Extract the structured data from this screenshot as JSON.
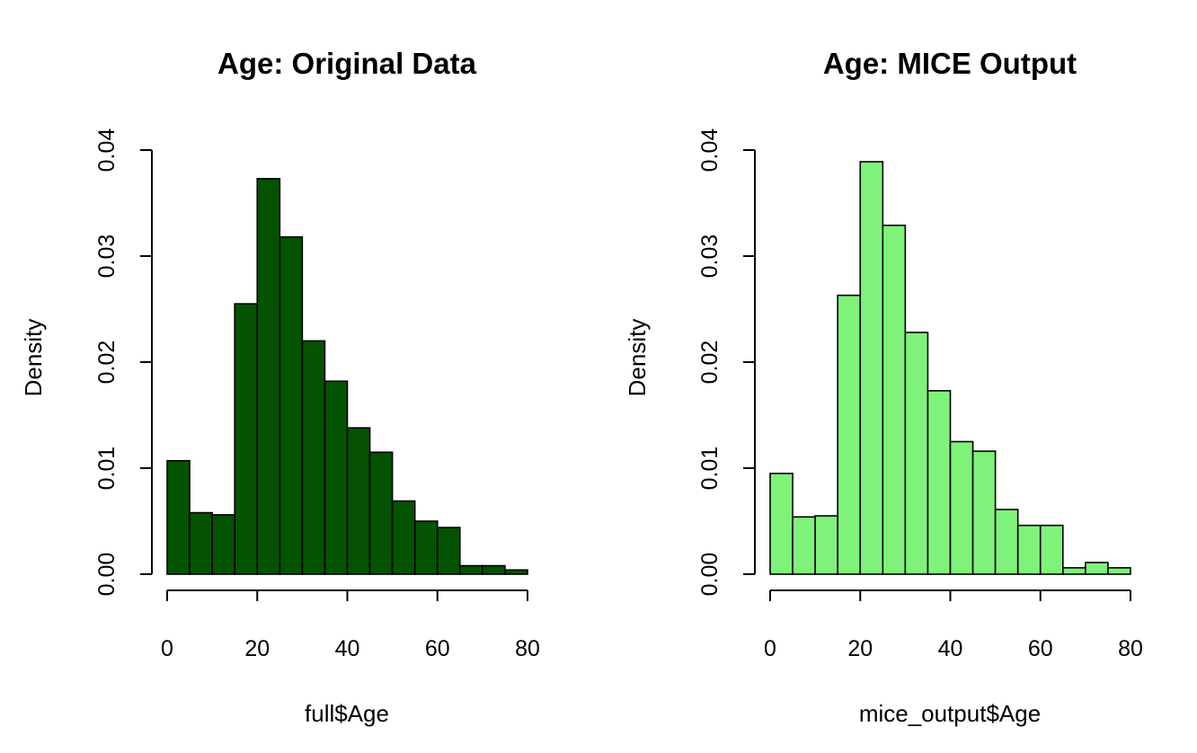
{
  "chart_data": [
    {
      "type": "bar",
      "title": "Age: Original Data",
      "xlabel": "full$Age",
      "ylabel": "Density",
      "bar_color": "#045300",
      "bin_edges": [
        0,
        5,
        10,
        15,
        20,
        25,
        30,
        35,
        40,
        45,
        50,
        55,
        60,
        65,
        70,
        75,
        80
      ],
      "values": [
        0.0107,
        0.0058,
        0.0056,
        0.0255,
        0.0373,
        0.0318,
        0.022,
        0.0182,
        0.0138,
        0.0115,
        0.0069,
        0.005,
        0.0044,
        0.0008,
        0.0008,
        0.0004
      ],
      "xlim": [
        0,
        80
      ],
      "ylim": [
        0,
        0.04
      ],
      "x_ticks": [
        "0",
        "20",
        "40",
        "60",
        "80"
      ],
      "y_ticks": [
        "0.00",
        "0.01",
        "0.02",
        "0.03",
        "0.04"
      ],
      "grid": false
    },
    {
      "type": "bar",
      "title": "Age: MICE Output",
      "xlabel": "mice_output$Age",
      "ylabel": "Density",
      "bar_color": "#7FF27A",
      "bin_edges": [
        0,
        5,
        10,
        15,
        20,
        25,
        30,
        35,
        40,
        45,
        50,
        55,
        60,
        65,
        70,
        75,
        80
      ],
      "values": [
        0.0095,
        0.0054,
        0.0055,
        0.0263,
        0.0389,
        0.0329,
        0.0228,
        0.0173,
        0.0125,
        0.0116,
        0.0061,
        0.0046,
        0.0046,
        0.0006,
        0.0011,
        0.0006
      ],
      "xlim": [
        0,
        80
      ],
      "ylim": [
        0,
        0.04
      ],
      "x_ticks": [
        "0",
        "20",
        "40",
        "60",
        "80"
      ],
      "y_ticks": [
        "0.00",
        "0.01",
        "0.02",
        "0.03",
        "0.04"
      ],
      "grid": false
    }
  ]
}
